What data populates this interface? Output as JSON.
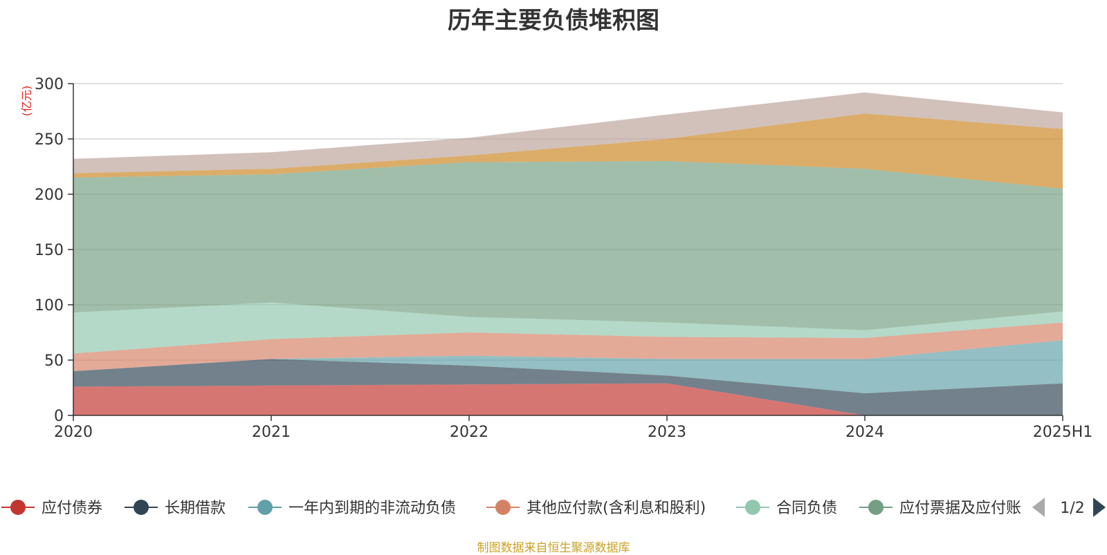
{
  "chart_data": {
    "type": "area",
    "stacked": true,
    "title": "历年主要负债堆积图",
    "ylabel": "(亿元)",
    "xlabel": "",
    "categories": [
      "2020",
      "2021",
      "2022",
      "2023",
      "2024",
      "2025H1"
    ],
    "ylim": [
      0,
      300
    ],
    "yticks": [
      0,
      50,
      100,
      150,
      200,
      250,
      300
    ],
    "grid": true,
    "legend_position": "bottom",
    "series": [
      {
        "name": "应付债券",
        "color": "#c23531",
        "values": [
          26,
          27,
          28,
          29,
          0,
          0
        ]
      },
      {
        "name": "长期借款",
        "color": "#2f4554",
        "values": [
          14,
          24,
          17,
          7,
          20,
          29
        ]
      },
      {
        "name": "一年内到期的非流动负债",
        "color": "#61a0a8",
        "values": [
          0,
          0,
          9,
          15,
          31,
          39
        ]
      },
      {
        "name": "其他应付款(含利息和股利)",
        "color": "#d48265",
        "values": [
          16,
          18,
          21,
          20,
          19,
          16
        ]
      },
      {
        "name": "合同负债",
        "color": "#91c7ae",
        "values": [
          37,
          33,
          14,
          13,
          7,
          10
        ]
      },
      {
        "name": "应付票据及应付账款",
        "color": "#749f83",
        "values": [
          122,
          116,
          140,
          146,
          146,
          111
        ]
      },
      {
        "name": "",
        "color": "#ca8622",
        "values": [
          4,
          5,
          6,
          20,
          50,
          54
        ]
      },
      {
        "name": "",
        "color": "#bda29a",
        "values": [
          13,
          15,
          16,
          22,
          19,
          15
        ]
      }
    ]
  },
  "legend": {
    "visible_count": 6,
    "page": "1/2",
    "last_label_visible": "应付票据及应付账"
  },
  "source_note": "制图数据来自恒生聚源数据库"
}
